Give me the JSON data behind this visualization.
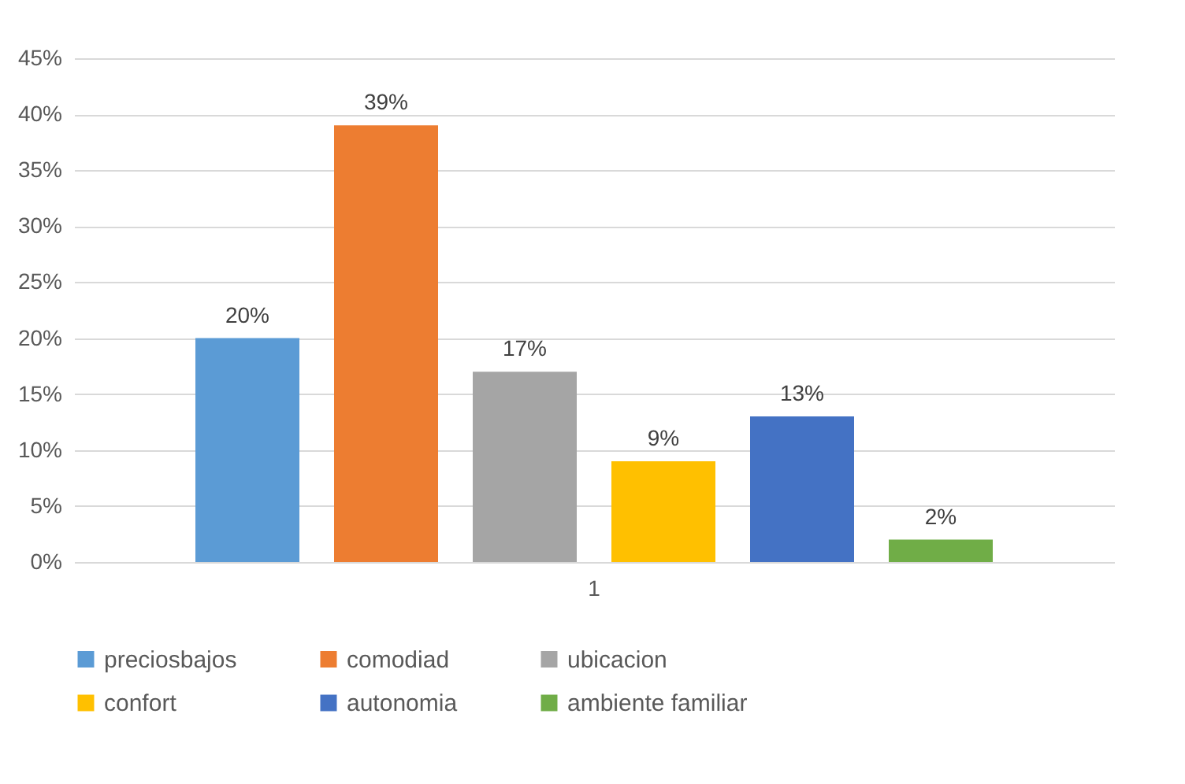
{
  "chart_data": {
    "type": "bar",
    "categories": [
      "1"
    ],
    "series": [
      {
        "name": "preciosbajos",
        "color": "#5b9bd5",
        "values": [
          20
        ],
        "value_labels": [
          "20%"
        ]
      },
      {
        "name": "comodiad",
        "color": "#ed7d31",
        "values": [
          39
        ],
        "value_labels": [
          "39%"
        ]
      },
      {
        "name": "ubicacion",
        "color": "#a5a5a5",
        "values": [
          17
        ],
        "value_labels": [
          "17%"
        ]
      },
      {
        "name": "confort",
        "color": "#ffc000",
        "values": [
          9
        ],
        "value_labels": [
          "9%"
        ]
      },
      {
        "name": "autonomia",
        "color": "#4472c4",
        "values": [
          13
        ],
        "value_labels": [
          "13%"
        ]
      },
      {
        "name": "ambiente familiar",
        "color": "#70ad47",
        "values": [
          2
        ],
        "value_labels": [
          "2%"
        ]
      }
    ],
    "ylim": [
      0,
      45
    ],
    "yticks": [
      {
        "value": 0,
        "label": "0%"
      },
      {
        "value": 5,
        "label": "5%"
      },
      {
        "value": 10,
        "label": "10%"
      },
      {
        "value": 15,
        "label": "15%"
      },
      {
        "value": 20,
        "label": "20%"
      },
      {
        "value": 25,
        "label": "25%"
      },
      {
        "value": 30,
        "label": "30%"
      },
      {
        "value": 35,
        "label": "35%"
      },
      {
        "value": 40,
        "label": "40%"
      },
      {
        "value": 45,
        "label": "45%"
      }
    ],
    "grid": "y",
    "legend": "bottom"
  }
}
